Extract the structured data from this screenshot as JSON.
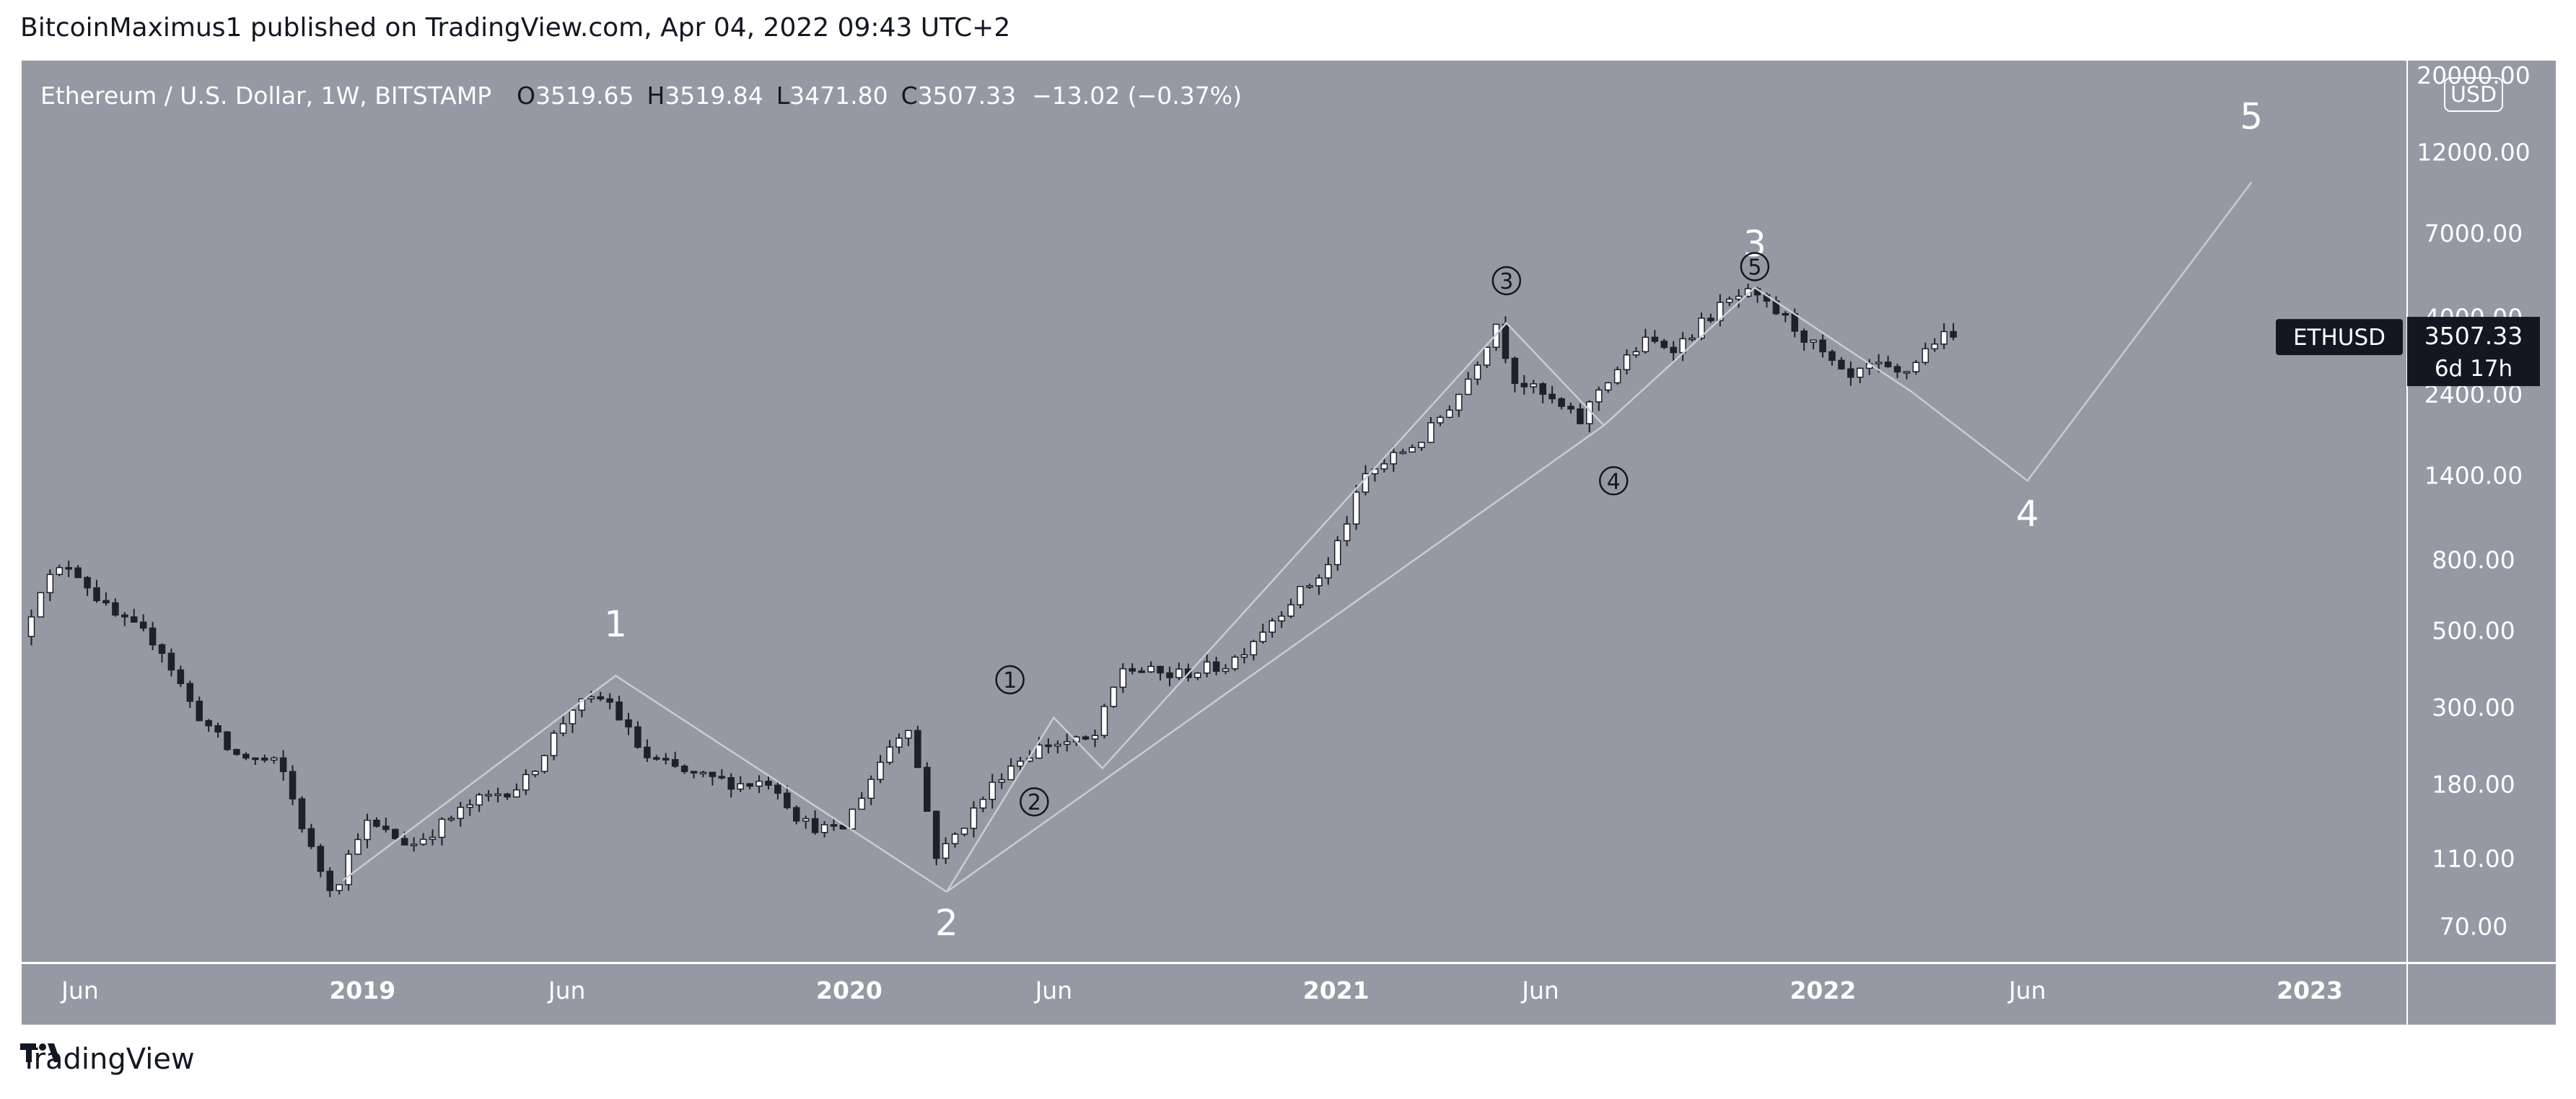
{
  "header": {
    "published_line": "BitcoinMaximus1 published on TradingView.com, Apr 04, 2022 09:43 UTC+2"
  },
  "footer": {
    "brand": "TradingView",
    "logo_icon": "tradingview-logo-icon"
  },
  "colors": {
    "chart_bg": "#9599a3",
    "frame": "#ffffff",
    "candle_up": "#ffffff",
    "candle_down": "#1f2128",
    "wick": "#1f2128",
    "wave_line": "#c9ccd2",
    "label_bg": "#131722",
    "text_dark": "#131722",
    "text_white": "#ffffff"
  },
  "chart_data": {
    "type": "candlestick",
    "symbol_line": {
      "name": "Ethereum / U.S. Dollar, 1W, BITSTAMP",
      "o_label": "O",
      "o_value": "3519.65",
      "h_label": "H",
      "h_value": "3519.84",
      "l_label": "L",
      "l_value": "3471.80",
      "c_label": "C",
      "c_value": "3507.33",
      "change": "−13.02 (−0.37%)"
    },
    "y_axis": {
      "scale": "log",
      "currency_badge": "USD",
      "range": [
        55,
        22000
      ],
      "ticks": [
        {
          "value": 20000,
          "label": "20000.00"
        },
        {
          "value": 12000,
          "label": "12000.00"
        },
        {
          "value": 7000,
          "label": "7000.00"
        },
        {
          "value": 4000,
          "label": "4000.00"
        },
        {
          "value": 2400,
          "label": "2400.00"
        },
        {
          "value": 1400,
          "label": "1400.00"
        },
        {
          "value": 800,
          "label": "800.00"
        },
        {
          "value": 500,
          "label": "500.00"
        },
        {
          "value": 300,
          "label": "300.00"
        },
        {
          "value": 180,
          "label": "180.00"
        },
        {
          "value": 110,
          "label": "110.00"
        },
        {
          "value": 70,
          "label": "70.00"
        }
      ]
    },
    "x_axis": {
      "range": [
        2018.3,
        2023.2
      ],
      "ticks": [
        {
          "value": 2018.42,
          "label": "Jun",
          "bold": false
        },
        {
          "value": 2019.0,
          "label": "2019",
          "bold": true
        },
        {
          "value": 2019.42,
          "label": "Jun",
          "bold": false
        },
        {
          "value": 2020.0,
          "label": "2020",
          "bold": true
        },
        {
          "value": 2020.42,
          "label": "Jun",
          "bold": false
        },
        {
          "value": 2021.0,
          "label": "2021",
          "bold": true
        },
        {
          "value": 2021.42,
          "label": "Jun",
          "bold": false
        },
        {
          "value": 2022.0,
          "label": "2022",
          "bold": true
        },
        {
          "value": 2022.42,
          "label": "Jun",
          "bold": false
        },
        {
          "value": 2023.0,
          "label": "2023",
          "bold": true
        }
      ]
    },
    "price_label": {
      "symbol": "ETHUSD",
      "price": "3507.33",
      "price_value": 3507.33,
      "countdown": "6d 17h"
    },
    "anchors": [
      {
        "t": 2018.32,
        "p": 480
      },
      {
        "t": 2018.36,
        "p": 680
      },
      {
        "t": 2018.42,
        "p": 780
      },
      {
        "t": 2018.5,
        "p": 560
      },
      {
        "t": 2018.6,
        "p": 460
      },
      {
        "t": 2018.67,
        "p": 300
      },
      {
        "t": 2018.75,
        "p": 220
      },
      {
        "t": 2018.85,
        "p": 205
      },
      {
        "t": 2018.92,
        "p": 110
      },
      {
        "t": 2018.96,
        "p": 88
      },
      {
        "t": 2019.02,
        "p": 140
      },
      {
        "t": 2019.12,
        "p": 120
      },
      {
        "t": 2019.25,
        "p": 160
      },
      {
        "t": 2019.35,
        "p": 180
      },
      {
        "t": 2019.45,
        "p": 300
      },
      {
        "t": 2019.52,
        "p": 320
      },
      {
        "t": 2019.6,
        "p": 215
      },
      {
        "t": 2019.7,
        "p": 190
      },
      {
        "t": 2019.8,
        "p": 180
      },
      {
        "t": 2019.86,
        "p": 185
      },
      {
        "t": 2019.92,
        "p": 140
      },
      {
        "t": 2020.0,
        "p": 130
      },
      {
        "t": 2020.1,
        "p": 230
      },
      {
        "t": 2020.14,
        "p": 270
      },
      {
        "t": 2020.2,
        "p": 110
      },
      {
        "t": 2020.24,
        "p": 130
      },
      {
        "t": 2020.34,
        "p": 200
      },
      {
        "t": 2020.42,
        "p": 235
      },
      {
        "t": 2020.52,
        "p": 240
      },
      {
        "t": 2020.58,
        "p": 390
      },
      {
        "t": 2020.68,
        "p": 370
      },
      {
        "t": 2020.8,
        "p": 400
      },
      {
        "t": 2020.92,
        "p": 600
      },
      {
        "t": 2021.0,
        "p": 750
      },
      {
        "t": 2021.08,
        "p": 1400
      },
      {
        "t": 2021.2,
        "p": 1800
      },
      {
        "t": 2021.28,
        "p": 2500
      },
      {
        "t": 2021.35,
        "p": 3900
      },
      {
        "t": 2021.38,
        "p": 2700
      },
      {
        "t": 2021.46,
        "p": 2300
      },
      {
        "t": 2021.52,
        "p": 2000
      },
      {
        "t": 2021.56,
        "p": 2500
      },
      {
        "t": 2021.65,
        "p": 3400
      },
      {
        "t": 2021.72,
        "p": 3300
      },
      {
        "t": 2021.8,
        "p": 4200
      },
      {
        "t": 2021.86,
        "p": 4700
      },
      {
        "t": 2021.94,
        "p": 4000
      },
      {
        "t": 2022.02,
        "p": 3100
      },
      {
        "t": 2022.07,
        "p": 2600
      },
      {
        "t": 2022.12,
        "p": 2900
      },
      {
        "t": 2022.18,
        "p": 2700
      },
      {
        "t": 2022.25,
        "p": 3450
      },
      {
        "t": 2022.27,
        "p": 3507
      }
    ],
    "wave_lines": [
      {
        "name": "wave-1-2",
        "points": [
          [
            2018.96,
            95
          ],
          [
            2019.52,
            370
          ],
          [
            2020.2,
            88
          ]
        ]
      },
      {
        "name": "sub-wave-1-3",
        "points": [
          [
            2020.2,
            88
          ],
          [
            2020.42,
            280
          ],
          [
            2020.52,
            200
          ],
          [
            2021.35,
            3850
          ],
          [
            2021.55,
            1950
          ],
          [
            2021.86,
            4870
          ]
        ]
      },
      {
        "name": "wave-3-5-projection",
        "points": [
          [
            2021.86,
            4870
          ],
          [
            2022.18,
            2450
          ],
          [
            2022.42,
            1350
          ],
          [
            2022.88,
            9800
          ]
        ]
      },
      {
        "name": "channel",
        "points": [
          [
            2020.2,
            88
          ],
          [
            2021.55,
            1950
          ]
        ]
      }
    ],
    "wave_labels": [
      {
        "text": "1",
        "t": 2019.52,
        "p": 480,
        "big": true
      },
      {
        "text": "2",
        "t": 2020.2,
        "p": 66,
        "big": true
      },
      {
        "text": "3",
        "t": 2021.86,
        "p": 6000,
        "big": true
      },
      {
        "text": "4",
        "t": 2022.42,
        "p": 1000,
        "big": true
      },
      {
        "text": "5",
        "t": 2022.88,
        "p": 14000,
        "big": true
      }
    ],
    "sub_labels": [
      {
        "text": "1",
        "t": 2020.33,
        "p": 360
      },
      {
        "text": "2",
        "t": 2020.38,
        "p": 160
      },
      {
        "text": "3",
        "t": 2021.35,
        "p": 5100
      },
      {
        "text": "4",
        "t": 2021.57,
        "p": 1350
      },
      {
        "text": "5",
        "t": 2021.86,
        "p": 5600
      }
    ]
  }
}
